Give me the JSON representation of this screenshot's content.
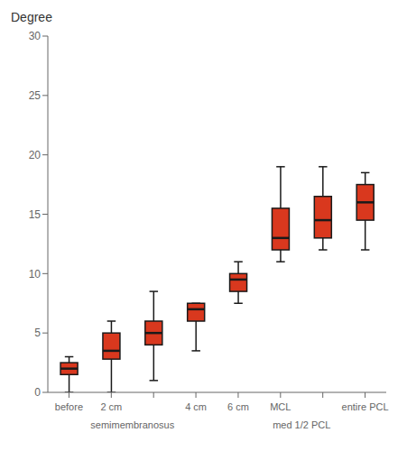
{
  "chart_data": {
    "type": "box",
    "ylabel": "Degree",
    "categories": [
      "before",
      "2 cm",
      null,
      "4 cm",
      "6 cm",
      "MCL",
      null,
      "entire PCL"
    ],
    "values": [
      {
        "whislo": 0.0,
        "q1": 1.5,
        "median": 2.0,
        "q3": 2.5,
        "whishi": 3.0
      },
      {
        "whislo": 0.0,
        "q1": 2.8,
        "median": 3.5,
        "q3": 5.0,
        "whishi": 6.0
      },
      {
        "whislo": 1.0,
        "q1": 4.0,
        "median": 5.0,
        "q3": 6.0,
        "whishi": 8.5
      },
      {
        "whislo": 3.5,
        "q1": 6.0,
        "median": 7.0,
        "q3": 7.5,
        "whishi": 7.5
      },
      {
        "whislo": 7.5,
        "q1": 8.5,
        "median": 9.5,
        "q3": 10.0,
        "whishi": 11.0
      },
      {
        "whislo": 11.0,
        "q1": 12.0,
        "median": 13.0,
        "q3": 15.5,
        "whishi": 19.0
      },
      {
        "whislo": 12.0,
        "q1": 13.0,
        "median": 14.5,
        "q3": 16.5,
        "whishi": 19.0
      },
      {
        "whislo": 12.0,
        "q1": 14.5,
        "median": 16.0,
        "q3": 17.5,
        "whishi": 18.5
      }
    ],
    "annotations": [
      {
        "text": "semimembranosus",
        "span": [
          1,
          2
        ]
      },
      {
        "text": "med 1/2 PCL",
        "span": [
          5,
          6
        ]
      }
    ],
    "color": "#D9381E",
    "ylim": [
      0,
      30
    ],
    "yticks": [
      0,
      5,
      10,
      15,
      20,
      25,
      30
    ],
    "grid": false
  }
}
